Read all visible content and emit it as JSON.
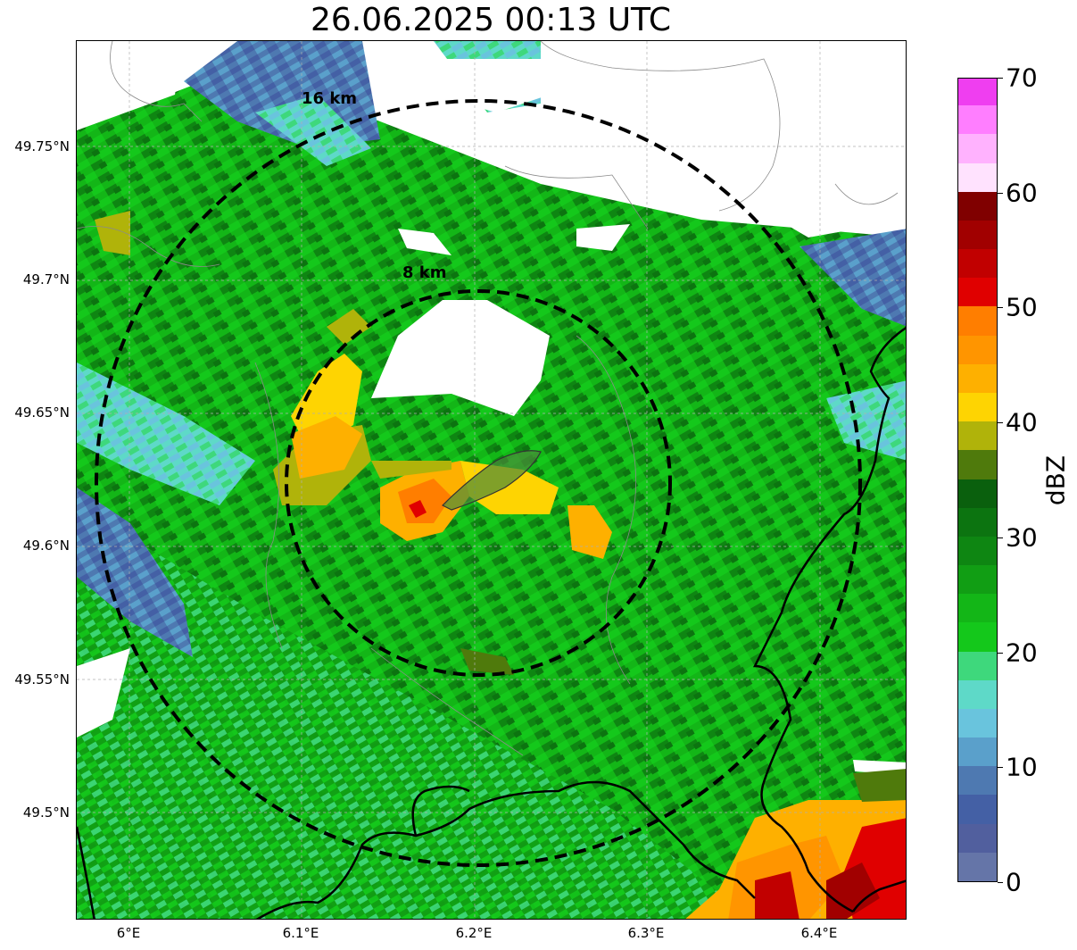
{
  "title": "26.06.2025 00:13 UTC",
  "map": {
    "lat_ticks": [
      "49.75°N",
      "49.7°N",
      "49.65°N",
      "49.6°N",
      "49.55°N",
      "49.5°N"
    ],
    "lon_ticks": [
      "6°E",
      "6.1°E",
      "6.2°E",
      "6.3°E",
      "6.4°E"
    ],
    "rings": [
      {
        "label": "16 km"
      },
      {
        "label": "8 km"
      }
    ]
  },
  "colorbar": {
    "label": "dBZ",
    "ticks": [
      "0",
      "10",
      "20",
      "30",
      "40",
      "50",
      "60",
      "70"
    ],
    "range": [
      0,
      70
    ],
    "colors": [
      "#6575a8",
      "#515f9e",
      "#4460a5",
      "#4e79b1",
      "#5aa0cb",
      "#69c4dd",
      "#5ed9c8",
      "#3ed87c",
      "#14c81b",
      "#13b617",
      "#119e14",
      "#0e8612",
      "#0c7410",
      "#0a600d",
      "#4f7a0c",
      "#b0b30a",
      "#fed402",
      "#feb000",
      "#ff9500",
      "#ff7e00",
      "#e00000",
      "#c10000",
      "#a10000",
      "#800000",
      "#ffe2fe",
      "#ffb2fe",
      "#ff7eff",
      "#ef3ef0"
    ]
  }
}
